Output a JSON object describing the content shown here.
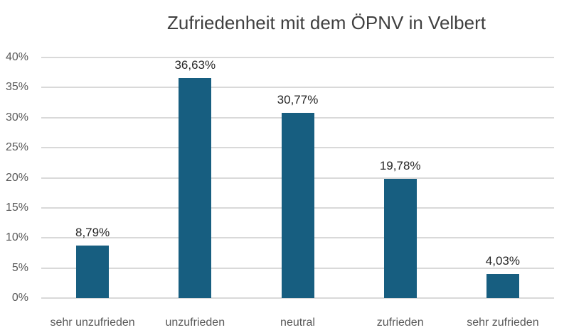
{
  "chart_data": {
    "type": "bar",
    "title": "Zufriedenheit mit dem ÖPNV in Velbert",
    "categories": [
      "sehr unzufrieden",
      "unzufrieden",
      "neutral",
      "zufrieden",
      "sehr zufrieden"
    ],
    "values": [
      8.79,
      36.63,
      30.77,
      19.78,
      4.03
    ],
    "data_labels": [
      "8,79%",
      "36,63%",
      "30,77%",
      "19,78%",
      "4,03%"
    ],
    "y_ticks": [
      "0%",
      "5%",
      "10%",
      "15%",
      "20%",
      "25%",
      "30%",
      "35%",
      "40%"
    ],
    "xlabel": "",
    "ylabel": "",
    "ylim": [
      0,
      40
    ],
    "y_tick_step": 5,
    "grid": true,
    "legend": "none",
    "colors": {
      "bar": "#175e80",
      "gridline": "#d9d9d9",
      "axis_text": "#595959",
      "data_label_text": "#262626",
      "title_text": "#404040",
      "background": "#ffffff"
    }
  }
}
